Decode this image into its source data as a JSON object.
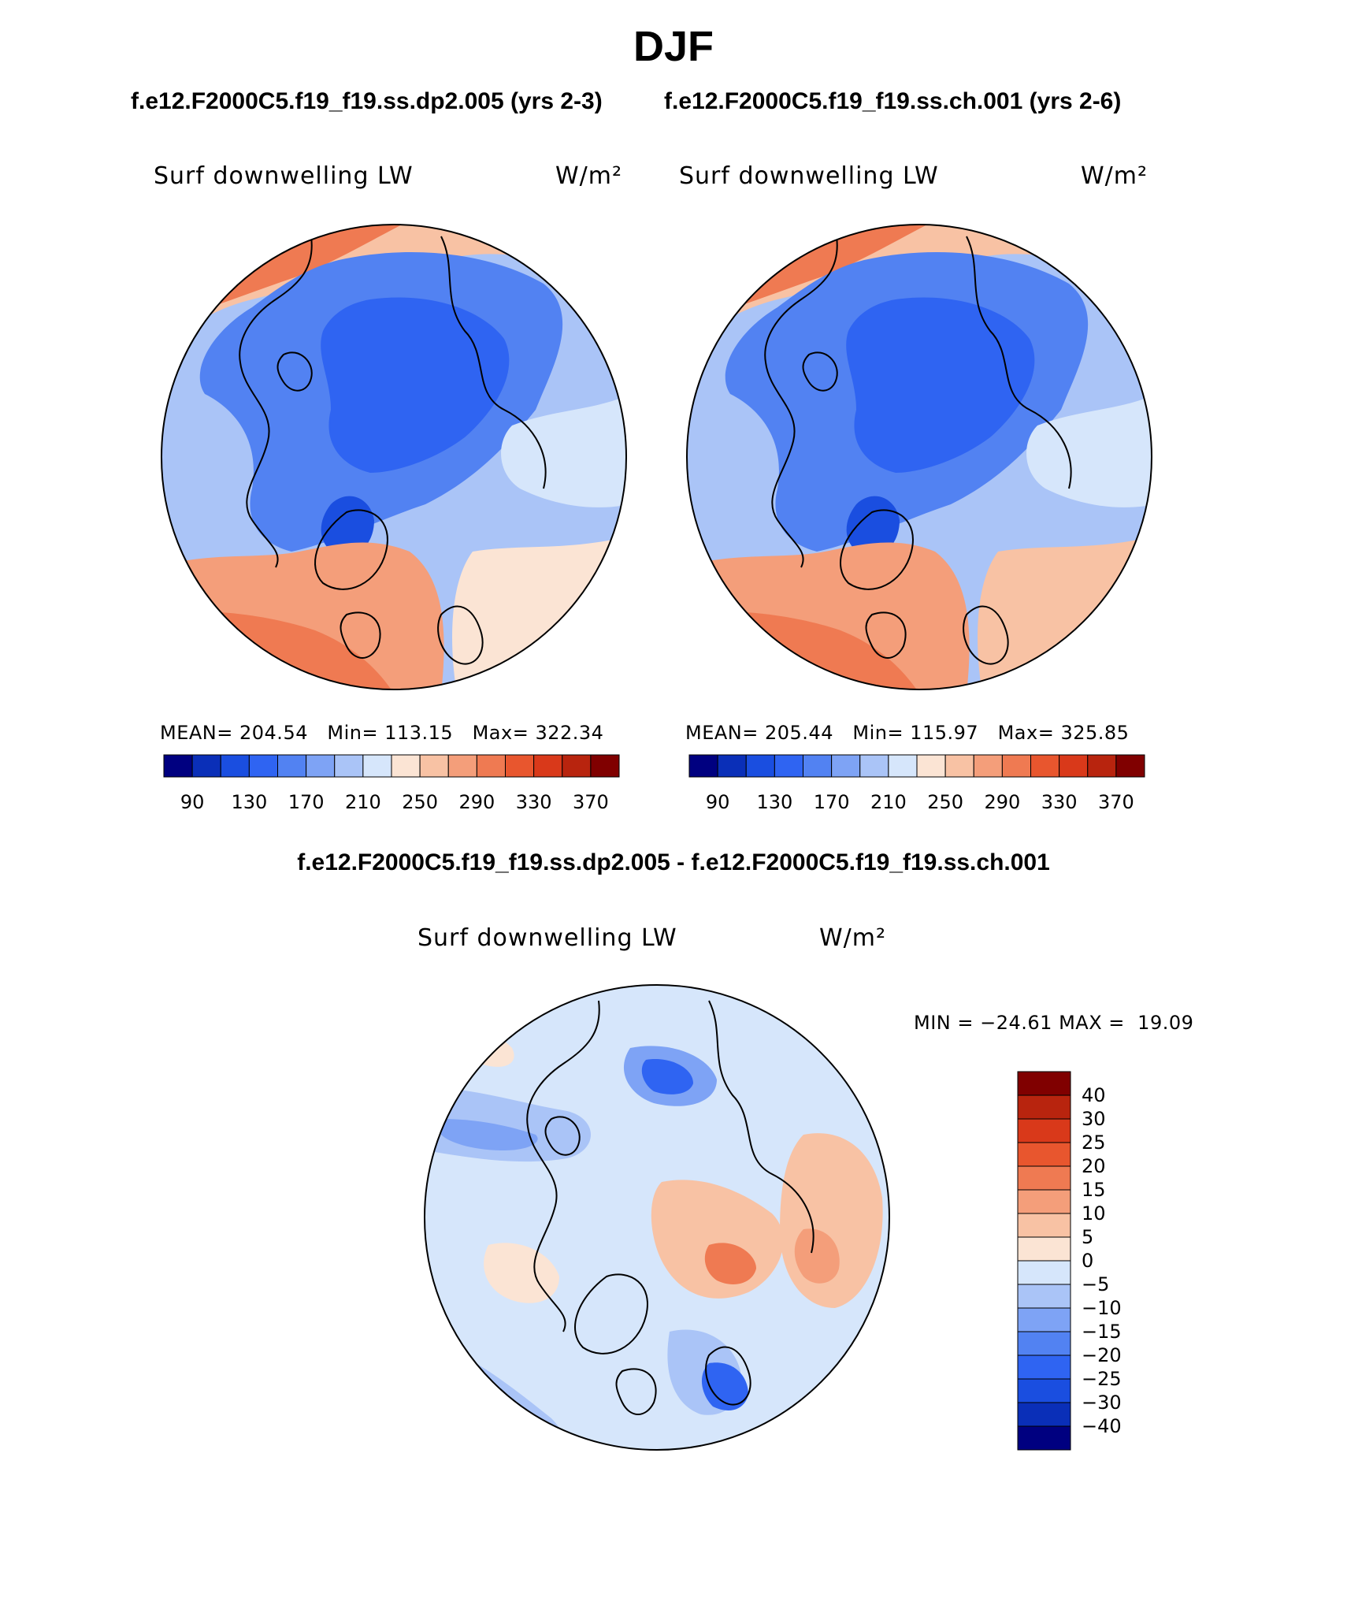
{
  "page": {
    "title": "DJF",
    "case_a_title": "f.e12.F2000C5.f19_f19.ss.dp2.005 (yrs 2-3)",
    "case_b_title": "f.e12.F2000C5.f19_f19.ss.ch.001 (yrs 2-6)",
    "diff_title": "f.e12.F2000C5.f19_f19.ss.dp2.005 - f.e12.F2000C5.f19_f19.ss.ch.001"
  },
  "chart_data": [
    {
      "type": "contour-map",
      "projection": "north polar stereographic",
      "variable": "Surf downwelling LW",
      "units": "W/m²",
      "stats": {
        "mean_label": "MEAN=",
        "mean": "204.54",
        "min_label": "Min=",
        "min": "113.15",
        "max_label": "Max=",
        "max": "322.34"
      },
      "levels": [
        90,
        110,
        130,
        150,
        170,
        190,
        210,
        230,
        250,
        270,
        290,
        310,
        330,
        350,
        370
      ],
      "colorbar_ticks": [
        "90",
        "130",
        "170",
        "210",
        "250",
        "290",
        "330",
        "370"
      ],
      "colors": [
        "#000080",
        "#0a2fb8",
        "#1a4ee0",
        "#2f64f2",
        "#5282f2",
        "#7ea3f5",
        "#aac4f7",
        "#d6e6fb",
        "#fbe4d4",
        "#f8c2a4",
        "#f49e7a",
        "#ef7a52",
        "#e8562e",
        "#d9391a",
        "#b8240e",
        "#800000"
      ]
    },
    {
      "type": "contour-map",
      "projection": "north polar stereographic",
      "variable": "Surf downwelling LW",
      "units": "W/m²",
      "stats": {
        "mean_label": "MEAN=",
        "mean": "205.44",
        "min_label": "Min=",
        "min": "115.97",
        "max_label": "Max=",
        "max": "325.85"
      },
      "levels": [
        90,
        110,
        130,
        150,
        170,
        190,
        210,
        230,
        250,
        270,
        290,
        310,
        330,
        350,
        370
      ],
      "colorbar_ticks": [
        "90",
        "130",
        "170",
        "210",
        "250",
        "290",
        "330",
        "370"
      ],
      "colors": [
        "#000080",
        "#0a2fb8",
        "#1a4ee0",
        "#2f64f2",
        "#5282f2",
        "#7ea3f5",
        "#aac4f7",
        "#d6e6fb",
        "#fbe4d4",
        "#f8c2a4",
        "#f49e7a",
        "#ef7a52",
        "#e8562e",
        "#d9391a",
        "#b8240e",
        "#800000"
      ]
    },
    {
      "type": "contour-map",
      "projection": "north polar stereographic",
      "variable": "Surf downwelling LW",
      "units": "W/m²",
      "stats": {
        "min_label": "MIN =",
        "min": "−24.61",
        "max_label": "MAX =",
        "max": "19.09"
      },
      "levels": [
        -40,
        -30,
        -25,
        -20,
        -15,
        -10,
        -5,
        0,
        5,
        10,
        15,
        20,
        25,
        30,
        40
      ],
      "colorbar_ticks": [
        "40",
        "30",
        "25",
        "20",
        "15",
        "10",
        "5",
        "0",
        "−5",
        "−10",
        "−15",
        "−20",
        "−25",
        "−30",
        "−40"
      ],
      "colors": [
        "#000080",
        "#0a2fb8",
        "#1a4ee0",
        "#2f64f2",
        "#5282f2",
        "#7ea3f5",
        "#aac4f7",
        "#d6e6fb",
        "#fbe4d4",
        "#f8c2a4",
        "#f49e7a",
        "#ef7a52",
        "#e8562e",
        "#d9391a",
        "#b8240e",
        "#800000"
      ]
    }
  ]
}
